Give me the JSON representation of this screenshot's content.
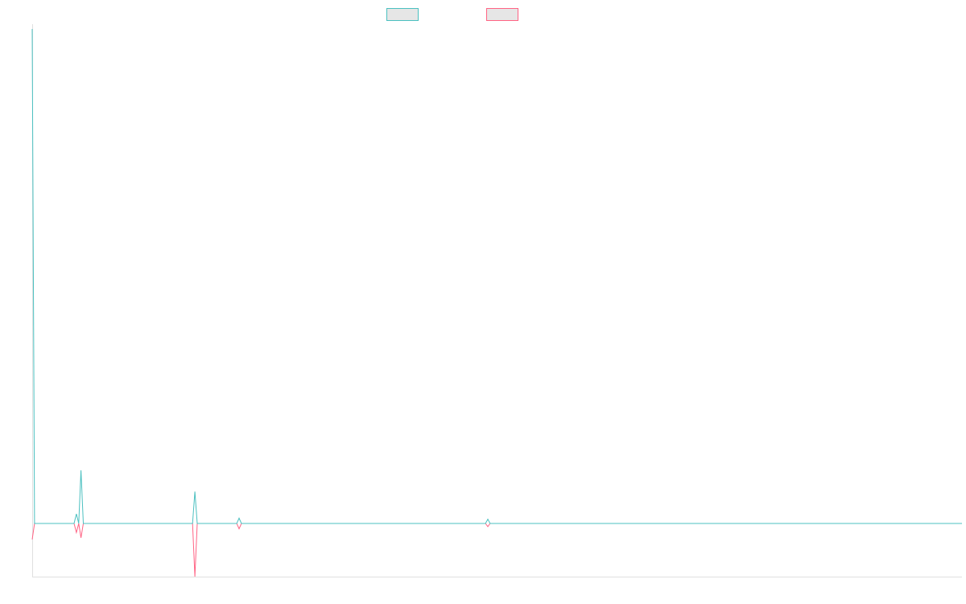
{
  "chart_data": {
    "type": "line",
    "title": "",
    "xlabel": "",
    "ylabel": "",
    "xlim": [
      0,
      400
    ],
    "ylim": [
      -1,
      9.3
    ],
    "grid": false,
    "legend": "top-center",
    "series": [
      {
        "color": "#4bc0c0",
        "points": [
          [
            0,
            9.3
          ],
          [
            1,
            0
          ],
          [
            18,
            0
          ],
          [
            19,
            0.18
          ],
          [
            20,
            0
          ],
          [
            21,
            1.0
          ],
          [
            22,
            0
          ],
          [
            69,
            0
          ],
          [
            70,
            0.6
          ],
          [
            71,
            0
          ],
          [
            88,
            0
          ],
          [
            89,
            0.1
          ],
          [
            90,
            0
          ],
          [
            195,
            0
          ],
          [
            196,
            0.08
          ],
          [
            197,
            0
          ],
          [
            400,
            0
          ]
        ]
      },
      {
        "color": "#ff6384",
        "points": [
          [
            0,
            -0.3
          ],
          [
            1,
            0
          ],
          [
            18,
            0
          ],
          [
            19,
            -0.17
          ],
          [
            20,
            0
          ],
          [
            21,
            -0.27
          ],
          [
            22,
            0
          ],
          [
            69,
            0
          ],
          [
            70,
            -1.0
          ],
          [
            71,
            0
          ],
          [
            88,
            0
          ],
          [
            89,
            -0.1
          ],
          [
            90,
            0
          ],
          [
            195,
            0
          ],
          [
            196,
            -0.06
          ],
          [
            197,
            0
          ],
          [
            400,
            0
          ]
        ]
      }
    ]
  }
}
